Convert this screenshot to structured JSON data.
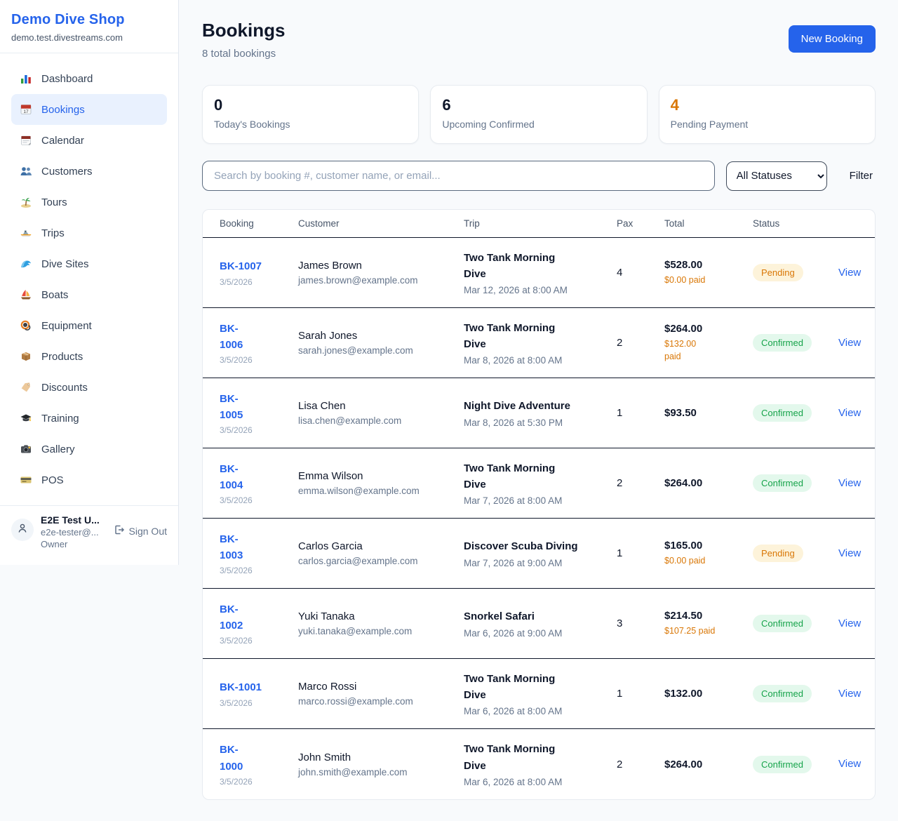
{
  "sidebar": {
    "brand": {
      "name": "Demo Dive Shop",
      "domain": "demo.test.divestreams.com"
    },
    "items": [
      {
        "label": "Dashboard",
        "icon": "dashboard-icon",
        "active": false
      },
      {
        "label": "Bookings",
        "icon": "bookings-icon",
        "active": true
      },
      {
        "label": "Calendar",
        "icon": "calendar-icon",
        "active": false
      },
      {
        "label": "Customers",
        "icon": "customers-icon",
        "active": false
      },
      {
        "label": "Tours",
        "icon": "tours-icon",
        "active": false
      },
      {
        "label": "Trips",
        "icon": "trips-icon",
        "active": false
      },
      {
        "label": "Dive Sites",
        "icon": "dive-sites-icon",
        "active": false
      },
      {
        "label": "Boats",
        "icon": "boats-icon",
        "active": false
      },
      {
        "label": "Equipment",
        "icon": "equipment-icon",
        "active": false
      },
      {
        "label": "Products",
        "icon": "products-icon",
        "active": false
      },
      {
        "label": "Discounts",
        "icon": "discounts-icon",
        "active": false
      },
      {
        "label": "Training",
        "icon": "training-icon",
        "active": false
      },
      {
        "label": "Gallery",
        "icon": "gallery-icon",
        "active": false
      },
      {
        "label": "POS",
        "icon": "pos-icon",
        "active": false
      }
    ],
    "user": {
      "name": "E2E Test U...",
      "email": "e2e-tester@...",
      "role": "Owner",
      "sign_out_label": "Sign Out"
    }
  },
  "header": {
    "title": "Bookings",
    "subtitle": "8 total bookings",
    "new_booking_label": "New Booking"
  },
  "stats": [
    {
      "value": "0",
      "label": "Today's Bookings",
      "color": "#0f172a"
    },
    {
      "value": "6",
      "label": "Upcoming Confirmed",
      "color": "#0f172a"
    },
    {
      "value": "4",
      "label": "Pending Payment",
      "color": "#d97706"
    }
  ],
  "filters": {
    "search_placeholder": "Search by booking #, customer name, or email...",
    "status_selected": "All Statuses",
    "filter_label": "Filter"
  },
  "table": {
    "columns": [
      "Booking",
      "Customer",
      "Trip",
      "Pax",
      "Total",
      "Status"
    ],
    "view_label": "View",
    "rows": [
      {
        "id": "BK-1007",
        "id_wrap": false,
        "date": "3/5/2026",
        "customer": "James Brown",
        "email": "james.brown@example.com",
        "trip": "Two Tank Morning Dive",
        "trip_time": "Mar 12, 2026 at 8:00 AM",
        "pax": "4",
        "total": "$528.00",
        "paid": "$0.00 paid",
        "paid_wrap": false,
        "status": "Pending"
      },
      {
        "id": "BK-1006",
        "id_wrap": true,
        "date": "3/5/2026",
        "customer": "Sarah Jones",
        "email": "sarah.jones@example.com",
        "trip": "Two Tank Morning Dive",
        "trip_time": "Mar 8, 2026 at 8:00 AM",
        "pax": "2",
        "total": "$264.00",
        "paid": "$132.00 paid",
        "paid_wrap": true,
        "status": "Confirmed"
      },
      {
        "id": "BK-1005",
        "id_wrap": true,
        "date": "3/5/2026",
        "customer": "Lisa Chen",
        "email": "lisa.chen@example.com",
        "trip": "Night Dive Adventure",
        "trip_time": "Mar 8, 2026 at 5:30 PM",
        "pax": "1",
        "total": "$93.50",
        "paid": null,
        "paid_wrap": false,
        "status": "Confirmed"
      },
      {
        "id": "BK-1004",
        "id_wrap": true,
        "date": "3/5/2026",
        "customer": "Emma Wilson",
        "email": "emma.wilson@example.com",
        "trip": "Two Tank Morning Dive",
        "trip_time": "Mar 7, 2026 at 8:00 AM",
        "pax": "2",
        "total": "$264.00",
        "paid": null,
        "paid_wrap": false,
        "status": "Confirmed"
      },
      {
        "id": "BK-1003",
        "id_wrap": true,
        "date": "3/5/2026",
        "customer": "Carlos Garcia",
        "email": "carlos.garcia@example.com",
        "trip": "Discover Scuba Diving",
        "trip_time": "Mar 7, 2026 at 9:00 AM",
        "pax": "1",
        "total": "$165.00",
        "paid": "$0.00 paid",
        "paid_wrap": false,
        "status": "Pending"
      },
      {
        "id": "BK-1002",
        "id_wrap": true,
        "date": "3/5/2026",
        "customer": "Yuki Tanaka",
        "email": "yuki.tanaka@example.com",
        "trip": "Snorkel Safari",
        "trip_time": "Mar 6, 2026 at 9:00 AM",
        "pax": "3",
        "total": "$214.50",
        "paid": "$107.25 paid",
        "paid_wrap": false,
        "status": "Confirmed"
      },
      {
        "id": "BK-1001",
        "id_wrap": false,
        "date": "3/5/2026",
        "customer": "Marco Rossi",
        "email": "marco.rossi@example.com",
        "trip": "Two Tank Morning Dive",
        "trip_time": "Mar 6, 2026 at 8:00 AM",
        "pax": "1",
        "total": "$132.00",
        "paid": null,
        "paid_wrap": false,
        "status": "Confirmed"
      },
      {
        "id": "BK-1000",
        "id_wrap": true,
        "date": "3/5/2026",
        "customer": "John Smith",
        "email": "john.smith@example.com",
        "trip": "Two Tank Morning Dive",
        "trip_time": "Mar 6, 2026 at 8:00 AM",
        "pax": "2",
        "total": "$264.00",
        "paid": null,
        "paid_wrap": false,
        "status": "Confirmed"
      }
    ]
  },
  "colors": {
    "accent_blue": "#2563eb",
    "pending_text": "#d97706",
    "pending_bg": "#fdf3da",
    "confirmed_text": "#16a34a",
    "confirmed_bg": "#e3f8ec",
    "page_bg": "#f8fafc"
  }
}
